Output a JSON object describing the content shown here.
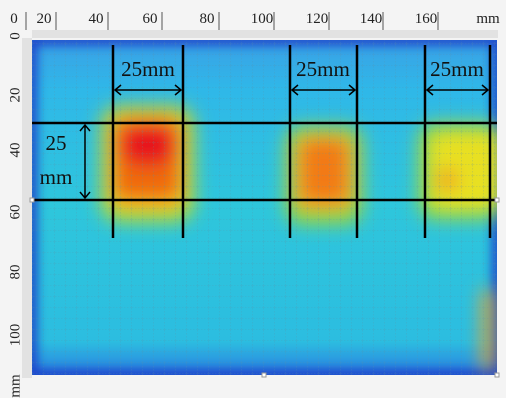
{
  "top_ruler": {
    "labels": [
      "0",
      "20",
      "40",
      "60",
      "80",
      "100",
      "120",
      "140",
      "160",
      "mm"
    ]
  },
  "left_ruler": {
    "labels": [
      "0",
      "20",
      "40",
      "60",
      "80",
      "100",
      "mm"
    ]
  },
  "annotations": {
    "width_labels": [
      "25mm",
      "25mm",
      "25mm"
    ],
    "height_label": [
      "25",
      "mm"
    ]
  }
}
